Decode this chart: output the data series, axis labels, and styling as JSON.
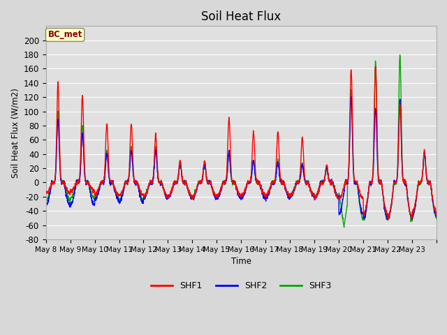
{
  "title": "Soil Heat Flux",
  "ylabel": "Soil Heat Flux (W/m2)",
  "xlabel": "Time",
  "ylim": [
    -80,
    220
  ],
  "yticks": [
    -80,
    -60,
    -40,
    -20,
    0,
    20,
    40,
    60,
    80,
    100,
    120,
    140,
    160,
    180,
    200
  ],
  "line_colors": {
    "SHF1": "#ff0000",
    "SHF2": "#0000ff",
    "SHF3": "#00aa00"
  },
  "line_width": 1.0,
  "bg_color": "#d8d8d8",
  "plot_bg_color": "#e0e0e0",
  "grid_color": "#ffffff",
  "annotation_text": "BC_met",
  "annotation_color": "#8b0000",
  "annotation_bg": "#ffffcc",
  "n_days": 16,
  "seed": 42,
  "day_peaks_shf1": [
    140,
    122,
    83,
    83,
    67,
    30,
    30,
    90,
    70,
    70,
    63,
    25,
    160,
    162,
    110,
    45
  ],
  "day_peaks_shf2": [
    88,
    70,
    40,
    45,
    45,
    27,
    25,
    42,
    30,
    28,
    25,
    22,
    120,
    105,
    115,
    42
  ],
  "day_peaks_shf3": [
    100,
    80,
    45,
    50,
    50,
    25,
    28,
    40,
    32,
    30,
    27,
    20,
    130,
    170,
    180,
    40
  ]
}
